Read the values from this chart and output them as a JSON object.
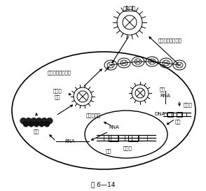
{
  "title": "图 6—14",
  "bg_color": "#ffffff",
  "text_color": "#000000",
  "label_virus": "病毒颗粒",
  "label_receptor": "受体识别的膜融合",
  "label_budding": "出芽、释放、成熟",
  "label_capsid_form1": "核衣壳",
  "label_capsid_form2": "形成",
  "label_translation": "翻译",
  "label_pack": "包入核衣壳",
  "label_uncoat": "脱壳",
  "label_rna1": "RNA",
  "label_reverse": "反转录",
  "label_dna": "DNA",
  "label_rna_nucleus": "RNA",
  "label_integrate": "整入",
  "label_transcribe": "转录",
  "label_provirus": "前病毒",
  "label_rna_cyto": "RNA",
  "figsize": [
    2.94,
    2.73
  ],
  "dpi": 100
}
